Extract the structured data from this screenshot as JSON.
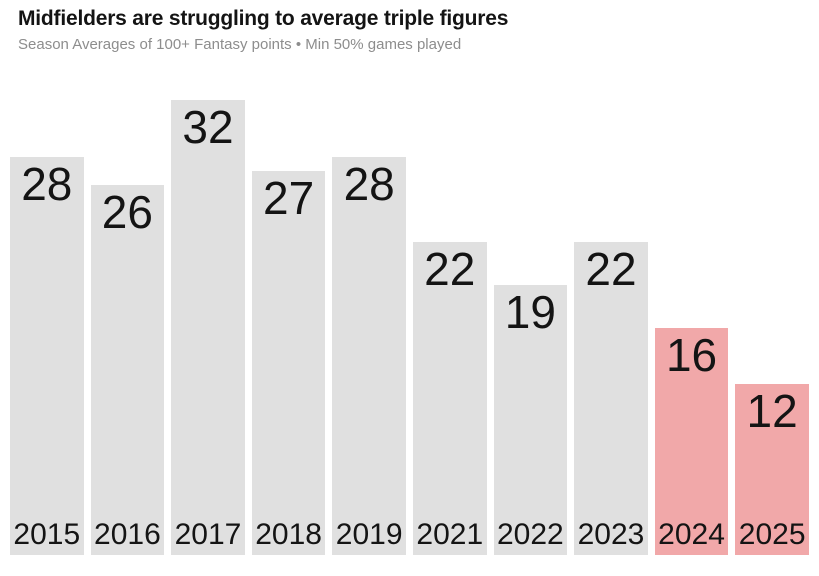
{
  "header": {
    "title": "Midfielders are struggling to average triple figures",
    "subtitle": "Season Averages of 100+ Fantasy points • Min 50% games played"
  },
  "chart_data": {
    "type": "bar",
    "title": "Midfielders are struggling to average triple figures",
    "subtitle": "Season Averages of 100+ Fantasy points • Min 50% games played",
    "categories": [
      "2015",
      "2016",
      "2017",
      "2018",
      "2019",
      "2021",
      "2022",
      "2023",
      "2024",
      "2025"
    ],
    "values": [
      28,
      26,
      32,
      27,
      28,
      22,
      19,
      22,
      16,
      12
    ],
    "highlighted_categories": [
      "2024",
      "2025"
    ],
    "ylim": [
      0,
      32
    ],
    "grid": false,
    "legend": false,
    "axes_drawn": false,
    "value_label_position": "inside-top",
    "category_label_position": "inside-bottom",
    "colors": {
      "bar_default": "#e0e0e0",
      "bar_highlight": "#f1a8a9",
      "label_text": "#141414",
      "title_text": "#141414",
      "subtitle_text": "#8d8d8d",
      "background": "#ffffff"
    }
  }
}
